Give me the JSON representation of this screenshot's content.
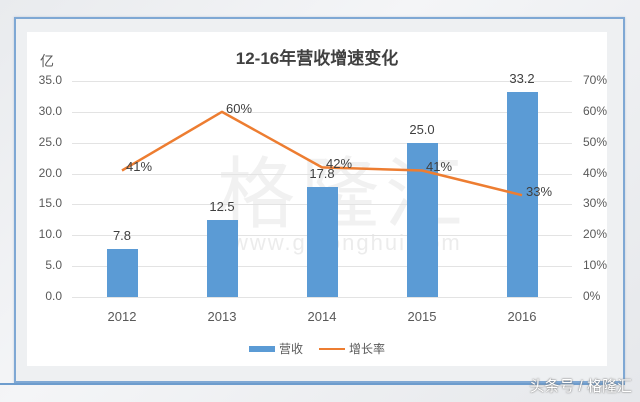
{
  "chart_data": {
    "type": "bar+line",
    "title": "12-16年营收增速变化",
    "unit_label": "亿",
    "categories": [
      "2012",
      "2013",
      "2014",
      "2015",
      "2016"
    ],
    "series": [
      {
        "name": "营收",
        "type": "bar",
        "axis": "left",
        "color": "#5b9bd5",
        "values": [
          7.8,
          12.5,
          17.8,
          25.0,
          33.2
        ],
        "labels": [
          "7.8",
          "12.5",
          "17.8",
          "25.0",
          "33.2"
        ]
      },
      {
        "name": "增长率",
        "type": "line",
        "axis": "right",
        "color": "#ed7d31",
        "values": [
          41,
          60,
          42,
          41,
          33
        ],
        "labels": [
          "41%",
          "60%",
          "42%",
          "41%",
          "33%"
        ]
      }
    ],
    "y_left": {
      "ticks": [
        "0.0",
        "5.0",
        "10.0",
        "15.0",
        "20.0",
        "25.0",
        "30.0",
        "35.0"
      ],
      "range": [
        0,
        35
      ]
    },
    "y_right": {
      "ticks": [
        "0%",
        "10%",
        "20%",
        "30%",
        "40%",
        "50%",
        "60%",
        "70%"
      ],
      "range": [
        0,
        70
      ]
    },
    "grid": true,
    "legend_position": "bottom"
  },
  "legend": {
    "bar_label": "营收",
    "line_label": "增长率"
  },
  "watermark": {
    "text": "格隆汇",
    "url": "www.gelonghui.com"
  },
  "corner_mark": "头条号 / 格隆汇"
}
